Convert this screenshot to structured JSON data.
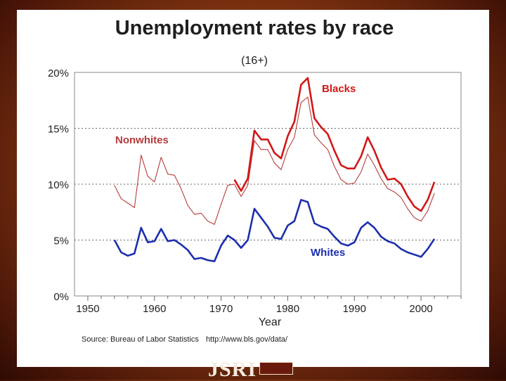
{
  "slide": {
    "source_label": "Source: Bureau of Labor Statistics",
    "source_url": "http://www.bls.gov/data/",
    "logo_text": "JSRI"
  },
  "colors": {
    "blacks": "#d01818",
    "nonwhites": "#b83c3c",
    "whites": "#1c2fae",
    "grid": "#666666"
  },
  "chart_data": {
    "type": "line",
    "title": "Unemployment rates by race",
    "subtitle": "(16+)",
    "xlabel": "Year",
    "ylabel": "",
    "xlim": [
      1948,
      2006
    ],
    "ylim": [
      0,
      20
    ],
    "x_ticks": [
      1950,
      1960,
      1970,
      1980,
      1990,
      2000
    ],
    "y_ticks": [
      {
        "value": 0,
        "label": "0%"
      },
      {
        "value": 5,
        "label": "5%"
      },
      {
        "value": 10,
        "label": "10%"
      },
      {
        "value": 15,
        "label": "15%"
      },
      {
        "value": 20,
        "label": "20%"
      }
    ],
    "grid": "dotted horizontal",
    "series": [
      {
        "name": "Blacks",
        "x": [
          1972,
          1973,
          1974,
          1975,
          1976,
          1977,
          1978,
          1979,
          1980,
          1981,
          1982,
          1983,
          1984,
          1985,
          1986,
          1987,
          1988,
          1989,
          1990,
          1991,
          1992,
          1993,
          1994,
          1995,
          1996,
          1997,
          1998,
          1999,
          2000,
          2001,
          2002
        ],
        "y": [
          10.4,
          9.4,
          10.5,
          14.8,
          14.0,
          14.0,
          12.8,
          12.3,
          14.3,
          15.6,
          18.9,
          19.5,
          15.9,
          15.1,
          14.5,
          13.0,
          11.7,
          11.4,
          11.4,
          12.5,
          14.2,
          13.0,
          11.5,
          10.4,
          10.5,
          10.0,
          8.9,
          8.0,
          7.6,
          8.6,
          10.2
        ]
      },
      {
        "name": "Nonwhites",
        "x": [
          1954,
          1955,
          1956,
          1957,
          1958,
          1959,
          1960,
          1961,
          1962,
          1963,
          1964,
          1965,
          1966,
          1967,
          1968,
          1969,
          1970,
          1971,
          1972,
          1973,
          1974,
          1975,
          1976,
          1977,
          1978,
          1979,
          1980,
          1981,
          1982,
          1983,
          1984,
          1985,
          1986,
          1987,
          1988,
          1989,
          1990,
          1991,
          1992,
          1993,
          1994,
          1995,
          1996,
          1997,
          1998,
          1999,
          2000,
          2001,
          2002
        ],
        "y": [
          9.9,
          8.7,
          8.3,
          7.9,
          12.6,
          10.7,
          10.2,
          12.4,
          10.9,
          10.8,
          9.6,
          8.1,
          7.3,
          7.4,
          6.7,
          6.4,
          8.2,
          9.9,
          10.0,
          8.9,
          9.9,
          13.9,
          13.1,
          13.1,
          11.9,
          11.3,
          13.1,
          14.2,
          17.3,
          17.8,
          14.4,
          13.7,
          13.1,
          11.6,
          10.4,
          10.0,
          10.1,
          11.1,
          12.7,
          11.7,
          10.5,
          9.6,
          9.3,
          8.8,
          7.8,
          7.0,
          6.7,
          7.6,
          9.2
        ]
      },
      {
        "name": "Whites",
        "x": [
          1954,
          1955,
          1956,
          1957,
          1958,
          1959,
          1960,
          1961,
          1962,
          1963,
          1964,
          1965,
          1966,
          1967,
          1968,
          1969,
          1970,
          1971,
          1972,
          1973,
          1974,
          1975,
          1976,
          1977,
          1978,
          1979,
          1980,
          1981,
          1982,
          1983,
          1984,
          1985,
          1986,
          1987,
          1988,
          1989,
          1990,
          1991,
          1992,
          1993,
          1994,
          1995,
          1996,
          1997,
          1998,
          1999,
          2000,
          2001,
          2002
        ],
        "y": [
          5.0,
          3.9,
          3.6,
          3.8,
          6.1,
          4.8,
          4.9,
          6.0,
          4.9,
          5.0,
          4.6,
          4.1,
          3.3,
          3.4,
          3.2,
          3.1,
          4.5,
          5.4,
          5.0,
          4.3,
          5.0,
          7.8,
          7.0,
          6.2,
          5.2,
          5.1,
          6.3,
          6.7,
          8.6,
          8.4,
          6.5,
          6.2,
          6.0,
          5.3,
          4.7,
          4.5,
          4.8,
          6.1,
          6.6,
          6.1,
          5.3,
          4.9,
          4.7,
          4.2,
          3.9,
          3.7,
          3.5,
          4.2,
          5.1
        ]
      }
    ]
  }
}
